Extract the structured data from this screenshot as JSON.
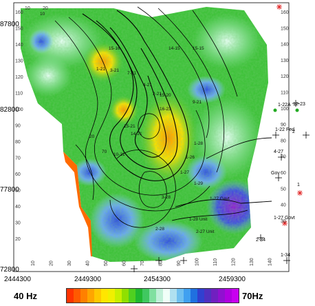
{
  "map": {
    "y_axis_labels": [
      "87800",
      "82800",
      "77800",
      "72800"
    ],
    "x_axis_labels": [
      "2444300",
      "2449300",
      "2454300",
      "2459300"
    ],
    "top_grid_labels": [
      "10",
      "20"
    ],
    "right_grid_labels": [
      "160",
      "150",
      "140",
      "130",
      "120",
      "110",
      "100",
      "90",
      "80",
      "70",
      "60",
      "50",
      "40",
      "30"
    ],
    "left_grid_labels": [
      "160",
      "150",
      "140",
      "130",
      "120",
      "110",
      "100",
      "90",
      "80",
      "70",
      "60",
      "50",
      "40",
      "30",
      "20"
    ],
    "bottom_grid_labels": [
      "10",
      "20",
      "30",
      "40",
      "50",
      "60",
      "70",
      "80",
      "90",
      "100",
      "110",
      "120",
      "130",
      "140"
    ],
    "contour_labels": [
      "10",
      "15-15",
      "14-15",
      "15-16",
      "1-21",
      "3-21",
      "7-21",
      "4-21",
      "2-21",
      "15-20",
      "9-21",
      "16-23",
      "15-21",
      "14-21",
      "10-21",
      "20",
      "1-28",
      "1-26",
      "1-27",
      "70",
      "1-29",
      "3-28",
      "2-28",
      "1-28 Unit",
      "2-27 Unit",
      "1-27 Gavt"
    ],
    "well_labels": [
      "1-22A",
      "12-23",
      "1-22 Fed",
      "2",
      "4-27",
      "1",
      "1-27 Govt",
      "2-34",
      "1-34",
      "Gov"
    ],
    "color_scale": {
      "low_label": "40 Hz",
      "high_label": "70Hz",
      "colors": [
        "#ff3300",
        "#ff5a00",
        "#ff8000",
        "#ffa500",
        "#ffc800",
        "#ffe600",
        "#f0f000",
        "#c8f000",
        "#90e000",
        "#50d020",
        "#20b830",
        "#40c860",
        "#80e0a0",
        "#c0f0d8",
        "#f0fff8",
        "#b0e0f0",
        "#70c0f0",
        "#40a0f0",
        "#2070e0",
        "#3040d0",
        "#5030c0",
        "#7020c0",
        "#9010d0",
        "#b000e0",
        "#c800f0"
      ]
    }
  }
}
